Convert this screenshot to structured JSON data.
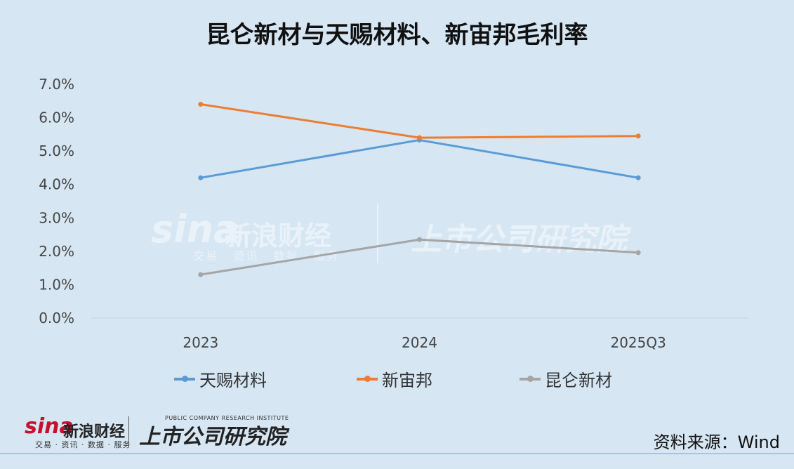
{
  "title": "昆仑新材与天赐材料、新宙邦毛利率",
  "source": "资料来源：Wind",
  "watermark": {
    "brand": "sina",
    "brand_cn": "新浪财经",
    "brand_sub": "交易 · 资讯 · 数据 · 服务",
    "institute": "上市公司研究院",
    "institute_en": "PUBLIC COMPANY RESEARCH INSTITUTE"
  },
  "chart_data": {
    "type": "line",
    "title": "昆仑新材与天赐材料、新宙邦毛利率",
    "categories": [
      "2023",
      "2024",
      "2025Q3"
    ],
    "y_ticks": [
      "0.0%",
      "1.0%",
      "2.0%",
      "3.0%",
      "4.0%",
      "5.0%",
      "6.0%",
      "7.0%"
    ],
    "ylim": [
      0,
      0.07
    ],
    "grid": false,
    "legend_position": "bottom",
    "series": [
      {
        "name": "天赐材料",
        "color": "#5b9bd5",
        "values": [
          0.042,
          0.0533,
          0.042
        ]
      },
      {
        "name": "新宙邦",
        "color": "#ed7d31",
        "values": [
          0.064,
          0.054,
          0.0545
        ]
      },
      {
        "name": "昆仑新材",
        "color": "#a5a5a5",
        "values": [
          0.013,
          0.0235,
          0.0196
        ]
      }
    ]
  }
}
